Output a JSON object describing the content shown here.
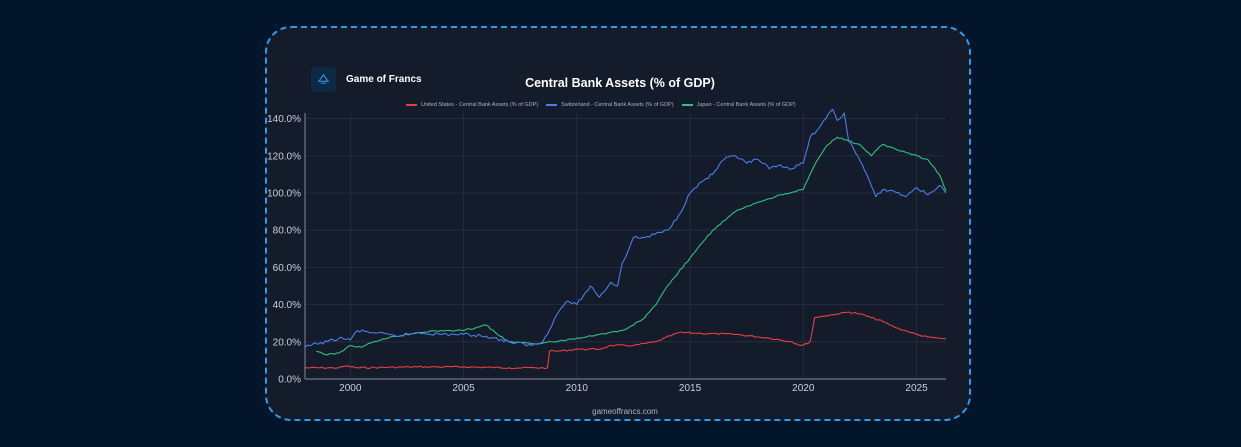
{
  "brand": {
    "name": "Game of Francs",
    "logo_icon": "pyramid-logo-icon",
    "logo_color": "#3b8fd9"
  },
  "footer": {
    "text": "gameoffrancs.com"
  },
  "colors": {
    "background": "#03152b",
    "card": "#141b2b",
    "border": "#2f9be6",
    "grid": "#263046",
    "tick_text": "#c9d0dc"
  },
  "chart_data": {
    "type": "line",
    "title": "Central Bank Assets (% of GDP)",
    "xlabel": "",
    "ylabel": "",
    "xlim": [
      1998.0,
      2026.3
    ],
    "ylim": [
      0,
      143
    ],
    "x_ticks": [
      "2000",
      "2005",
      "2010",
      "2015",
      "2020",
      "2025"
    ],
    "y_ticks": [
      "0.0%",
      "20.0%",
      "40.0%",
      "60.0%",
      "80.0%",
      "100.0%",
      "120.0%",
      "140.0%"
    ],
    "grid": true,
    "legend_position": "top",
    "series": [
      {
        "name": "United States - Central Bank Assets (% of GDP)",
        "color": "#e84040",
        "x": [
          1998.0,
          1999.5,
          1999.8,
          2000.3,
          2003.0,
          2005.0,
          2007.0,
          2008.7,
          2008.8,
          2009.2,
          2010.0,
          2011.0,
          2011.5,
          2012.5,
          2013.5,
          2014.5,
          2015.5,
          2017.0,
          2018.5,
          2019.5,
          2019.9,
          2020.2,
          2020.3,
          2020.5,
          2021.0,
          2021.5,
          2022.0,
          2022.5,
          2023.0,
          2023.5,
          2024.0,
          2024.5,
          2025.0,
          2025.5,
          2026.3
        ],
        "y": [
          6,
          6,
          7,
          6,
          6.5,
          6.5,
          6,
          6,
          15,
          15,
          16,
          16,
          18,
          18,
          20,
          25,
          24.5,
          24,
          22,
          20,
          18,
          19,
          20,
          33,
          34,
          35,
          36,
          35,
          33,
          31,
          28,
          26,
          24,
          22.5,
          21.5
        ]
      },
      {
        "name": "Switzerland - Central Bank Assets (% of GDP)",
        "color": "#4a7ee8",
        "x": [
          1998.0,
          1998.5,
          1999.0,
          1999.5,
          2000.0,
          2000.3,
          2001.0,
          2002.0,
          2003.0,
          2004.0,
          2005.0,
          2006.0,
          2007.0,
          2008.0,
          2008.5,
          2009.0,
          2009.3,
          2009.6,
          2010.0,
          2010.3,
          2010.6,
          2011.0,
          2011.5,
          2011.8,
          2012.0,
          2012.3,
          2012.5,
          2013.0,
          2014.0,
          2014.5,
          2015.0,
          2015.5,
          2016.0,
          2016.5,
          2017.0,
          2017.5,
          2018.0,
          2018.5,
          2019.0,
          2019.5,
          2020.0,
          2020.3,
          2020.7,
          2021.0,
          2021.3,
          2021.5,
          2021.8,
          2022.0,
          2022.4,
          2022.8,
          2023.2,
          2023.6,
          2024.0,
          2024.5,
          2025.0,
          2025.5,
          2026.0,
          2026.3
        ],
        "y": [
          17,
          19,
          20,
          22,
          21,
          26,
          25,
          23,
          25,
          24,
          24,
          23,
          20,
          18,
          20,
          32,
          38,
          42,
          40,
          45,
          50,
          44,
          52,
          50,
          62,
          70,
          76,
          76,
          80,
          88,
          100,
          106,
          110,
          118,
          120,
          116,
          118,
          113,
          115,
          113,
          116,
          130,
          135,
          140,
          145,
          139,
          143,
          128,
          120,
          110,
          98,
          102,
          101,
          98,
          103,
          99,
          104,
          100
        ]
      },
      {
        "name": "Japan - Central Bank Assets (% of GDP)",
        "color": "#2ec27e",
        "x": [
          1998.5,
          1999.0,
          1999.5,
          2000.0,
          2000.5,
          2001.0,
          2002.0,
          2003.0,
          2004.0,
          2005.0,
          2006.0,
          2006.5,
          2007.0,
          2008.0,
          2009.0,
          2010.0,
          2011.0,
          2012.0,
          2012.5,
          2013.0,
          2013.5,
          2014.0,
          2015.0,
          2016.0,
          2017.0,
          2018.0,
          2019.0,
          2020.0,
          2020.5,
          2021.0,
          2021.5,
          2022.0,
          2022.5,
          2023.0,
          2023.5,
          2024.0,
          2024.5,
          2025.0,
          2025.5,
          2026.0,
          2026.3
        ],
        "y": [
          15,
          13,
          14,
          18,
          17,
          20,
          23,
          25,
          26,
          26,
          29,
          24,
          20,
          19,
          20,
          22,
          24,
          26,
          29,
          33,
          40,
          50,
          65,
          80,
          90,
          95,
          99,
          102,
          115,
          125,
          130,
          128,
          126,
          120,
          126,
          124,
          122,
          120,
          118,
          110,
          101
        ]
      }
    ]
  }
}
